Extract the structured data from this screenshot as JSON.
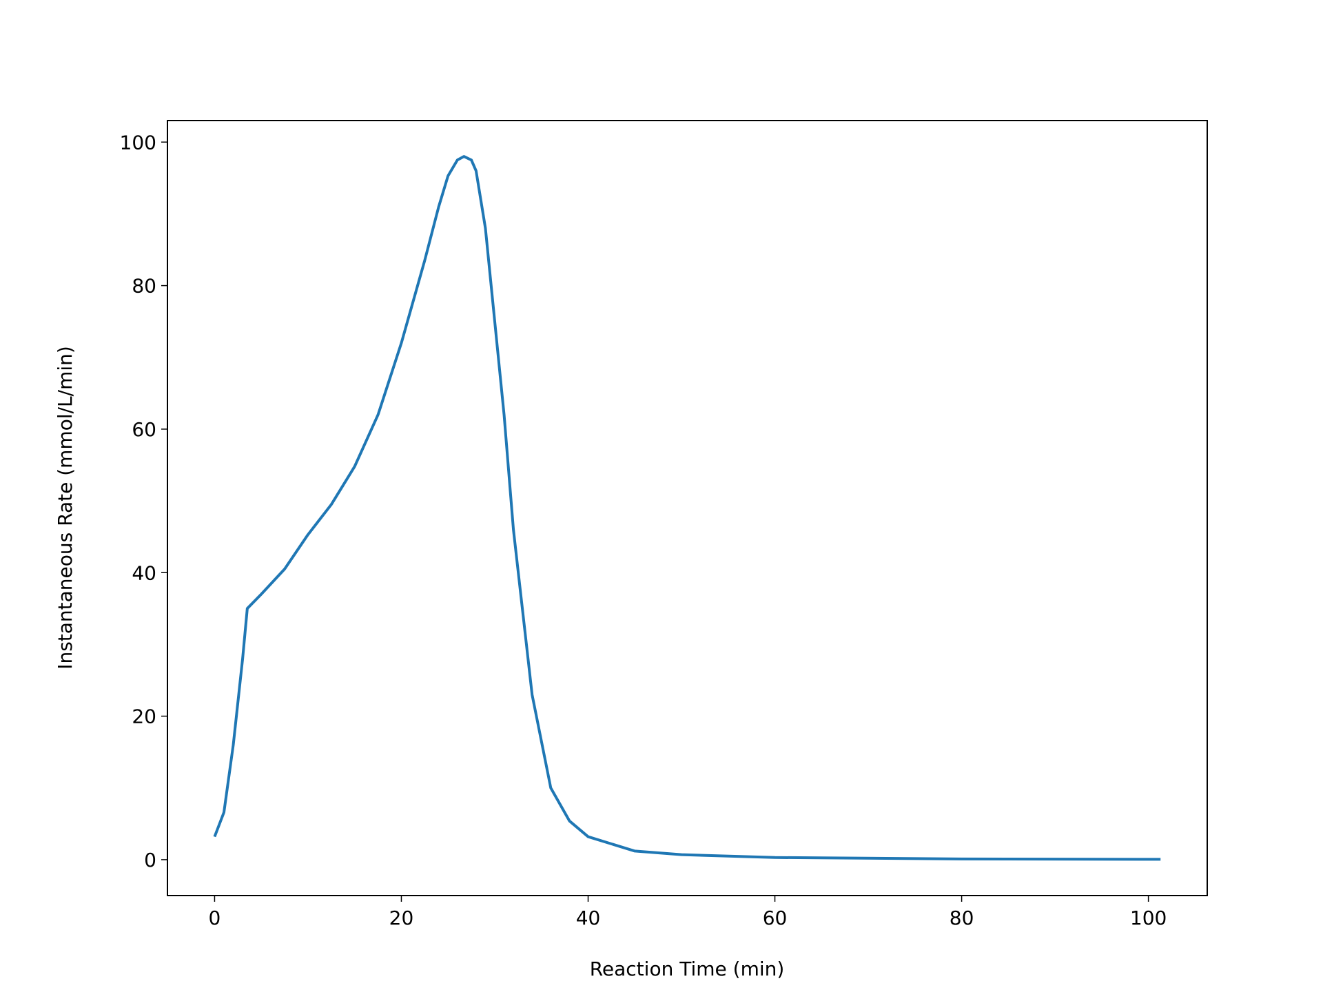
{
  "chart_data": {
    "type": "line",
    "x_label": "Reaction Time (min)",
    "y_label": "Instantaneous Rate (mmol/L/min)",
    "x": [
      0,
      1,
      2,
      3,
      3.5,
      5,
      7.5,
      10,
      12.5,
      15,
      17.5,
      20,
      22.5,
      24,
      25,
      26,
      26.7,
      27.5,
      28,
      29,
      30,
      31,
      32,
      34,
      36,
      38,
      40,
      45,
      50,
      60,
      80,
      101.3
    ],
    "series": [
      {
        "name": "Instantaneous Rate",
        "color": "#1f77b4",
        "values": [
          3.2,
          6.6,
          16,
          28,
          35,
          37,
          40.5,
          45.3,
          49.5,
          54.8,
          62,
          72,
          83.5,
          91,
          95.3,
          97.5,
          98,
          97.5,
          96,
          88,
          75,
          62,
          46,
          23,
          10,
          5.4,
          3.2,
          1.2,
          0.7,
          0.3,
          0.1,
          0.05
        ]
      }
    ],
    "xlim": [
      -5.05,
      106.3
    ],
    "ylim": [
      -5,
      103
    ],
    "xticks": [
      0,
      20,
      40,
      60,
      80,
      100
    ],
    "yticks": [
      0,
      20,
      40,
      60,
      80,
      100
    ],
    "grid": false
  }
}
